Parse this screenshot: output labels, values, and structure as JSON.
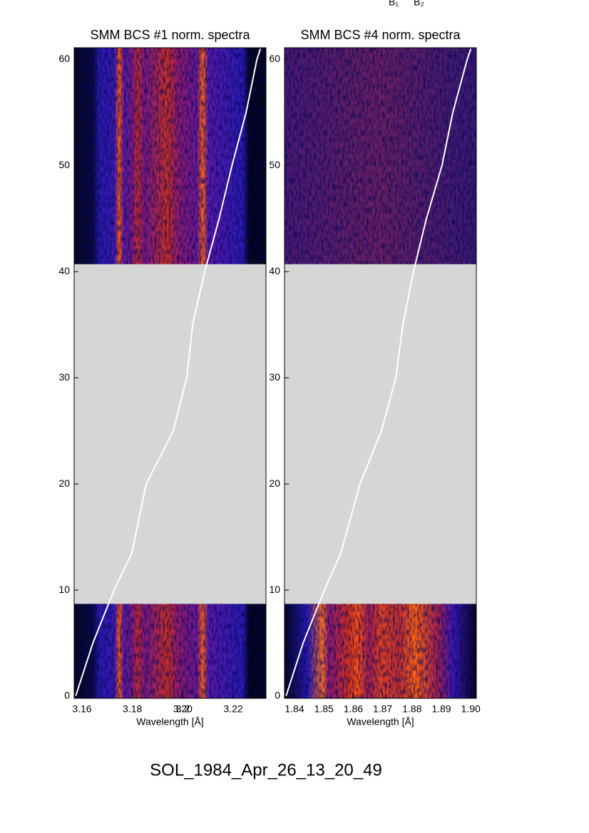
{
  "annotations": [
    "B₁",
    "B₂"
  ],
  "footer": "SOL_1984_Apr_26_13_20_49",
  "chart_data": [
    {
      "type": "line",
      "title": "SMM BCS #1 norm. spectra",
      "x_label": "Wavelength [Å]",
      "xlim": [
        3.1569,
        3.233
      ],
      "ylim": [
        -0.2,
        61.1
      ],
      "xticks": [
        3.16,
        3.18,
        3.2,
        {
          "value": 3.2,
          "label": "3.20"
        },
        3.22
      ],
      "yticks": [
        0,
        10,
        20,
        30,
        40,
        50,
        60
      ],
      "no_data_range": [
        8.7,
        40.7
      ],
      "series": [
        {
          "color": "#ffffff",
          "x": [
            3.1575,
            3.1643,
            3.1727,
            3.1798,
            3.1855,
            3.1962,
            3.2016,
            3.2039,
            3.2087,
            3.2144,
            3.2195,
            3.2251,
            3.2294,
            3.2308
          ],
          "values": [
            0,
            5,
            10,
            13.5,
            20,
            25,
            30,
            35,
            40,
            45,
            50,
            55,
            60,
            61
          ]
        }
      ]
    },
    {
      "type": "line",
      "title": "SMM BCS #4 norm. spectra",
      "x_label": "Wavelength [Å]",
      "xlim": [
        1.8366,
        1.9019
      ],
      "ylim": [
        -0.2,
        61.1
      ],
      "xticks": [
        1.84,
        1.85,
        1.86,
        1.87,
        1.88,
        1.89,
        {
          "value": 1.9,
          "label": "1.90"
        }
      ],
      "yticks": [
        0,
        10,
        20,
        30,
        40,
        50,
        60
      ],
      "no_data_range": [
        8.7,
        40.7
      ],
      "series": [
        {
          "color": "#ffffff",
          "x": [
            1.8371,
            1.8429,
            1.8502,
            1.8558,
            1.8623,
            1.8696,
            1.8745,
            1.8769,
            1.8805,
            1.8849,
            1.8902,
            1.8939,
            1.8988,
            1.9
          ],
          "values": [
            0,
            5,
            10,
            13.5,
            20,
            25,
            30,
            35,
            40,
            45,
            50,
            55,
            60,
            61
          ]
        }
      ]
    }
  ]
}
